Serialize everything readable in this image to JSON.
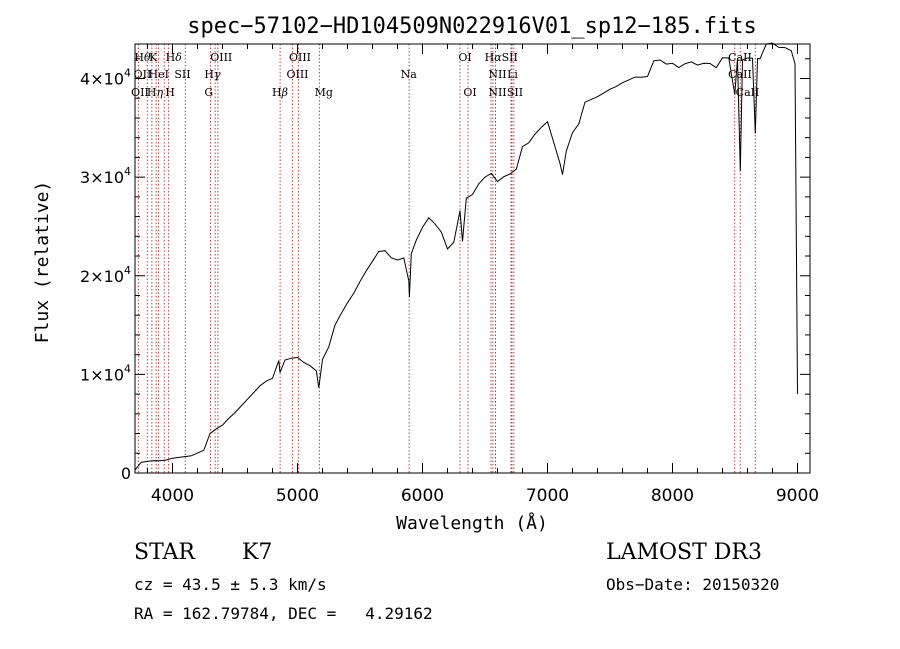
{
  "chart_data": {
    "type": "line",
    "title": "spec−57102−HD104509N022916V01_sp12−185.fits",
    "xlabel": "Wavelength (Å)",
    "ylabel": "Flux (relative)",
    "xlim": [
      3700,
      9100
    ],
    "ylim": [
      0,
      43500
    ],
    "x_ticks": [
      {
        "value": 4000,
        "label": "4000"
      },
      {
        "value": 5000,
        "label": "5000"
      },
      {
        "value": 6000,
        "label": "6000"
      },
      {
        "value": 7000,
        "label": "7000"
      },
      {
        "value": 8000,
        "label": "8000"
      },
      {
        "value": 9000,
        "label": "9000"
      }
    ],
    "y_ticks": [
      {
        "value": 0,
        "label": "0",
        "exp": ""
      },
      {
        "value": 10000,
        "label": "1×10",
        "exp": "4"
      },
      {
        "value": 20000,
        "label": "2×10",
        "exp": "4"
      },
      {
        "value": 30000,
        "label": "3×10",
        "exp": "4"
      },
      {
        "value": 40000,
        "label": "4×10",
        "exp": "4"
      }
    ],
    "series": [
      {
        "name": "spectrum",
        "x": [
          3700,
          3750,
          3800,
          3850,
          3900,
          3950,
          4000,
          4050,
          4100,
          4150,
          4200,
          4250,
          4300,
          4350,
          4400,
          4450,
          4500,
          4550,
          4600,
          4650,
          4700,
          4750,
          4800,
          4850,
          4860,
          4900,
          4950,
          5000,
          5050,
          5100,
          5150,
          5170,
          5200,
          5250,
          5300,
          5350,
          5400,
          5450,
          5500,
          5550,
          5600,
          5650,
          5700,
          5750,
          5800,
          5850,
          5890,
          5895,
          5910,
          5950,
          6000,
          6050,
          6100,
          6150,
          6200,
          6250,
          6300,
          6320,
          6350,
          6400,
          6450,
          6500,
          6550,
          6600,
          6650,
          6700,
          6750,
          6800,
          6850,
          6900,
          6950,
          7000,
          7050,
          7100,
          7120,
          7150,
          7200,
          7250,
          7300,
          7350,
          7400,
          7450,
          7500,
          7550,
          7600,
          7650,
          7700,
          7750,
          7800,
          7850,
          7900,
          7950,
          8000,
          8050,
          8100,
          8150,
          8200,
          8250,
          8300,
          8350,
          8400,
          8450,
          8498,
          8520,
          8542,
          8560,
          8600,
          8640,
          8662,
          8680,
          8700,
          8750,
          8800,
          8850,
          8900,
          8950,
          8980,
          9000
        ],
        "y": [
          300,
          500,
          700,
          900,
          1000,
          1200,
          1500,
          1700,
          1900,
          2100,
          2500,
          2900,
          3400,
          4000,
          4500,
          5300,
          6000,
          6800,
          7600,
          8400,
          9200,
          9800,
          10200,
          10800,
          9700,
          11100,
          11400,
          11600,
          11200,
          11000,
          10600,
          9000,
          12000,
          13400,
          14400,
          15700,
          16900,
          18000,
          19300,
          20500,
          21600,
          22700,
          22900,
          22300,
          22200,
          21200,
          19000,
          17500,
          22000,
          23500,
          24900,
          26000,
          25500,
          24800,
          23200,
          24000,
          26000,
          23000,
          27500,
          28000,
          29200,
          30000,
          30500,
          29800,
          30400,
          30800,
          31400,
          32500,
          33000,
          34000,
          34800,
          35500,
          33500,
          31500,
          30500,
          33000,
          35000,
          36000,
          37000,
          37400,
          37800,
          38300,
          38800,
          39200,
          39700,
          40100,
          40500,
          40600,
          40800,
          41200,
          41400,
          41100,
          41300,
          41000,
          41500,
          41800,
          41600,
          41900,
          42000,
          41700,
          41500,
          41600,
          38000,
          41800,
          30500,
          41900,
          42200,
          42300,
          34800,
          42500,
          42600,
          42900,
          43100,
          42800,
          42900,
          42700,
          41500,
          8000
        ]
      }
    ],
    "line_groups": [
      {
        "group": "Hdelta",
        "row": 1,
        "segments": [
          {
            "text": "H",
            "style": "normal"
          },
          {
            "text": "θ",
            "style": "italic"
          }
        ]
      },
      {
        "group": "K",
        "row": 1,
        "segments": [
          {
            "text": "K",
            "style": "normal"
          }
        ]
      },
      {
        "group": "Hdelta2",
        "row": 1,
        "segments": [
          {
            "text": "H",
            "style": "normal"
          },
          {
            "text": "δ",
            "style": "italic"
          }
        ]
      },
      {
        "group": "OIII_a",
        "row": 1,
        "segments": [
          {
            "text": "OIII",
            "style": "normal"
          }
        ]
      },
      {
        "group": "OIII_b",
        "row": 1,
        "segments": [
          {
            "text": "OIII",
            "style": "normal"
          }
        ]
      },
      {
        "group": "OI_a",
        "row": 1,
        "segments": [
          {
            "text": "OI",
            "style": "normal"
          }
        ]
      },
      {
        "group": "Halpha",
        "row": 1,
        "segments": [
          {
            "text": "H",
            "style": "normal"
          },
          {
            "text": "α",
            "style": "italic"
          },
          {
            "text": "SII",
            "style": "normal"
          }
        ]
      },
      {
        "group": "CaII_a",
        "row": 1,
        "segments": [
          {
            "text": "CaII",
            "style": "normal"
          }
        ]
      },
      {
        "group": "OII_b",
        "row": 2,
        "segments": [
          {
            "text": "OII",
            "style": "normal"
          }
        ]
      },
      {
        "group": "HeI",
        "row": 2,
        "segments": [
          {
            "text": "HeI",
            "style": "normal"
          }
        ]
      },
      {
        "group": "SII_a",
        "row": 2,
        "segments": [
          {
            "text": "SII",
            "style": "normal"
          }
        ]
      },
      {
        "group": "Hgamma",
        "row": 2,
        "segments": [
          {
            "text": "H",
            "style": "normal"
          },
          {
            "text": "γ",
            "style": "italic"
          }
        ]
      },
      {
        "group": "OIII_c",
        "row": 2,
        "segments": [
          {
            "text": "OIII",
            "style": "normal"
          }
        ]
      },
      {
        "group": "Na",
        "row": 2,
        "segments": [
          {
            "text": "Na",
            "style": "normal"
          }
        ]
      },
      {
        "group": "NII_a",
        "row": 2,
        "segments": [
          {
            "text": "NII",
            "style": "normal"
          }
        ]
      },
      {
        "group": "Li",
        "row": 2,
        "segments": [
          {
            "text": "Li",
            "style": "normal"
          }
        ]
      },
      {
        "group": "CaII_b",
        "row": 2,
        "segments": [
          {
            "text": "CaII",
            "style": "normal"
          }
        ]
      },
      {
        "group": "OII_c",
        "row": 3,
        "segments": [
          {
            "text": "OII",
            "style": "normal"
          }
        ]
      },
      {
        "group": "Heta",
        "row": 3,
        "segments": [
          {
            "text": "H",
            "style": "normal"
          },
          {
            "text": "η",
            "style": "italic"
          }
        ]
      },
      {
        "group": "H",
        "row": 3,
        "segments": [
          {
            "text": "H",
            "style": "normal"
          }
        ]
      },
      {
        "group": "G",
        "row": 3,
        "segments": [
          {
            "text": "G",
            "style": "normal"
          }
        ]
      },
      {
        "group": "Hbeta",
        "row": 3,
        "segments": [
          {
            "text": "H",
            "style": "normal"
          },
          {
            "text": "β",
            "style": "italic"
          }
        ]
      },
      {
        "group": "Mg",
        "row": 3,
        "segments": [
          {
            "text": "Mg",
            "style": "normal"
          }
        ]
      },
      {
        "group": "OI_b",
        "row": 3,
        "segments": [
          {
            "text": "OI",
            "style": "normal"
          }
        ]
      },
      {
        "group": "NII_b",
        "row": 3,
        "segments": [
          {
            "text": "NII",
            "style": "normal"
          }
        ]
      },
      {
        "group": "SII_b",
        "row": 3,
        "segments": [
          {
            "text": "SII",
            "style": "normal"
          }
        ]
      },
      {
        "group": "CaII_c",
        "row": 3,
        "segments": [
          {
            "text": "CaII",
            "style": "normal"
          }
        ]
      }
    ],
    "line_labels_wavelength": {
      "Hdelta": 3760,
      "K": 3845,
      "Hdelta2": 4010,
      "OIII_a": 4390,
      "OIII_b": 5020,
      "OI_a": 6340,
      "Halpha": 6630,
      "CaII_a": 8540,
      "OII_b": 3760,
      "HeI": 3890,
      "SII_a": 4080,
      "Hgamma": 4320,
      "OIII_c": 5000,
      "Na": 5890,
      "NII_a": 6600,
      "Li": 6720,
      "CaII_b": 8540,
      "OII_c": 3740,
      "Heta": 3860,
      "H": 3980,
      "G": 4290,
      "Hbeta": 4860,
      "Mg": 5210,
      "OI_b": 6380,
      "NII_b": 6600,
      "SII_b": 6740,
      "CaII_c": 8600
    },
    "line_markers": [
      3727,
      3798,
      3835,
      3869,
      3889,
      3934,
      3969,
      4102,
      4304,
      4341,
      4363,
      4861,
      4959,
      5007,
      5175,
      5893,
      6300,
      6364,
      6548,
      6563,
      6584,
      6708,
      6716,
      6731,
      8498,
      8542,
      8662
    ],
    "marker_color": "#b03030"
  },
  "info": {
    "object_type": "STAR",
    "subclass": "K7",
    "survey": "LAMOST DR3",
    "cz": "cz = 43.5 ± 5.3 km/s",
    "obs_date": "Obs−Date: 20150320",
    "coords": "RA = 162.79784, DEC =   4.29162"
  }
}
